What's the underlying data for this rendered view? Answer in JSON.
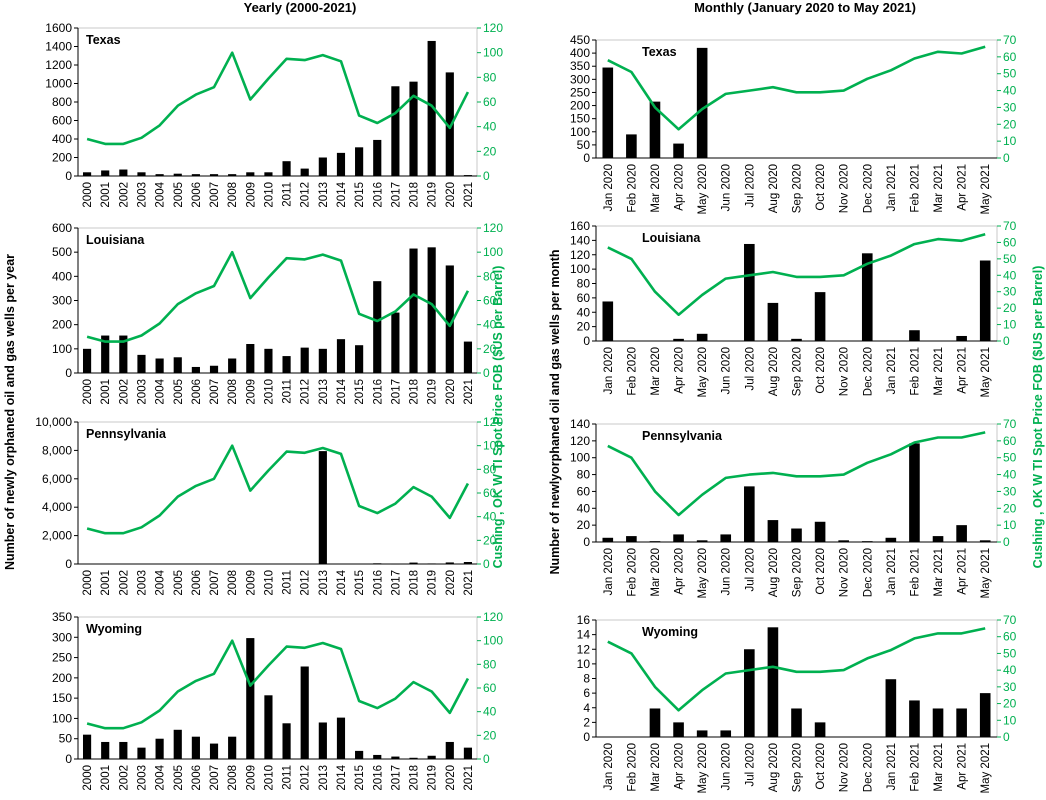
{
  "titles": {
    "yearly": "Yearly (2000-2021)",
    "monthly": "Monthly (January 2020 to May 2021)"
  },
  "ylabels": {
    "yearly": "Number of newly orphaned oil and gas wells per year",
    "monthly": "Number of newlyorphaned oil and gas wells per month",
    "price": "Cushing , OK W TI Spot Price FOB ($US per Barrel)"
  },
  "colors": {
    "bars": "#000000",
    "price_line": "#00b050",
    "axis": "#000000"
  },
  "chart_data": [
    {
      "type": "bar+line",
      "panel": "yearly",
      "label": "Texas",
      "categories": [
        "2000",
        "2001",
        "2002",
        "2003",
        "2004",
        "2005",
        "2006",
        "2007",
        "2008",
        "2009",
        "2010",
        "2011",
        "2012",
        "2013",
        "2014",
        "2015",
        "2016",
        "2017",
        "2018",
        "2019",
        "2020",
        "2021"
      ],
      "wells": [
        40,
        60,
        70,
        40,
        20,
        25,
        20,
        20,
        20,
        40,
        40,
        160,
        80,
        200,
        250,
        310,
        390,
        970,
        1020,
        1460,
        1120,
        10
      ],
      "price": [
        30,
        26,
        26,
        31,
        41,
        57,
        66,
        72,
        100,
        62,
        79,
        95,
        94,
        98,
        93,
        49,
        43,
        51,
        65,
        57,
        39,
        68
      ],
      "ylim": [
        0,
        1600
      ],
      "yticks": [
        0,
        200,
        400,
        600,
        800,
        1000,
        1200,
        1400,
        1600
      ],
      "y2lim": [
        0,
        120
      ],
      "y2ticks": [
        0,
        20,
        40,
        60,
        80,
        100,
        120
      ]
    },
    {
      "type": "bar+line",
      "panel": "yearly",
      "label": "Louisiana",
      "categories": [
        "2000",
        "2001",
        "2002",
        "2003",
        "2004",
        "2005",
        "2006",
        "2007",
        "2008",
        "2009",
        "2010",
        "2011",
        "2012",
        "2013",
        "2014",
        "2015",
        "2016",
        "2017",
        "2018",
        "2019",
        "2020",
        "2021"
      ],
      "wells": [
        100,
        155,
        155,
        75,
        60,
        65,
        25,
        30,
        60,
        120,
        100,
        70,
        105,
        100,
        140,
        115,
        380,
        250,
        515,
        520,
        445,
        130
      ],
      "price": [
        30,
        26,
        26,
        31,
        41,
        57,
        66,
        72,
        100,
        62,
        79,
        95,
        94,
        98,
        93,
        49,
        43,
        51,
        65,
        57,
        39,
        68
      ],
      "ylim": [
        0,
        600
      ],
      "yticks": [
        0,
        100,
        200,
        300,
        400,
        500,
        600
      ],
      "y2lim": [
        0,
        120
      ],
      "y2ticks": [
        0,
        20,
        40,
        60,
        80,
        100,
        120
      ]
    },
    {
      "type": "bar+line",
      "panel": "yearly",
      "label": "Pennsylvania",
      "categories": [
        "2000",
        "2001",
        "2002",
        "2003",
        "2004",
        "2005",
        "2006",
        "2007",
        "2008",
        "2009",
        "2010",
        "2011",
        "2012",
        "2013",
        "2014",
        "2015",
        "2016",
        "2017",
        "2018",
        "2019",
        "2020",
        "2021"
      ],
      "wells": [
        0,
        0,
        0,
        0,
        0,
        0,
        0,
        0,
        0,
        0,
        0,
        0,
        0,
        7950,
        0,
        30,
        50,
        20,
        100,
        40,
        110,
        140
      ],
      "price": [
        30,
        26,
        26,
        31,
        41,
        57,
        66,
        72,
        100,
        62,
        79,
        95,
        94,
        98,
        93,
        49,
        43,
        51,
        65,
        57,
        39,
        68
      ],
      "ylim": [
        0,
        10000
      ],
      "yticks": [
        "0",
        "2,000",
        "4,000",
        "6,000",
        "8,000",
        "10,000"
      ],
      "y2lim": [
        0,
        120
      ],
      "y2ticks": [
        0,
        20,
        40,
        60,
        80,
        100,
        120
      ]
    },
    {
      "type": "bar+line",
      "panel": "yearly",
      "label": "Wyoming",
      "categories": [
        "2000",
        "2001",
        "2002",
        "2003",
        "2004",
        "2005",
        "2006",
        "2007",
        "2008",
        "2009",
        "2010",
        "2011",
        "2012",
        "2013",
        "2014",
        "2015",
        "2016",
        "2017",
        "2018",
        "2019",
        "2020",
        "2021"
      ],
      "wells": [
        60,
        42,
        42,
        28,
        50,
        72,
        55,
        38,
        55,
        298,
        157,
        88,
        228,
        90,
        102,
        20,
        10,
        6,
        3,
        8,
        42,
        28
      ],
      "price": [
        30,
        26,
        26,
        31,
        41,
        57,
        66,
        72,
        100,
        62,
        79,
        95,
        94,
        98,
        93,
        49,
        43,
        51,
        65,
        57,
        39,
        68
      ],
      "ylim": [
        0,
        350
      ],
      "yticks": [
        0,
        50,
        100,
        150,
        200,
        250,
        300,
        350
      ],
      "y2lim": [
        0,
        120
      ],
      "y2ticks": [
        0,
        20,
        40,
        60,
        80,
        100,
        120
      ]
    },
    {
      "type": "bar+line",
      "panel": "monthly",
      "label": "Texas",
      "categories": [
        "Jan 2020",
        "Feb 2020",
        "Mar 2020",
        "Apr 2020",
        "May 2020",
        "Jun 2020",
        "Jul 2020",
        "Aug 2020",
        "Sep 2020",
        "Oct 2020",
        "Nov 2020",
        "Dec 2020",
        "Jan 2021",
        "Feb 2021",
        "Mar 2021",
        "Apr 2021",
        "May 2021"
      ],
      "wells": [
        345,
        90,
        215,
        55,
        420,
        0,
        0,
        0,
        0,
        0,
        0,
        0,
        0,
        0,
        0,
        0,
        0
      ],
      "price": [
        58,
        51,
        30,
        17,
        29,
        38,
        40,
        42,
        39,
        39,
        40,
        47,
        52,
        59,
        63,
        62,
        66
      ],
      "ylim": [
        0,
        450
      ],
      "yticks": [
        0,
        50,
        100,
        150,
        200,
        250,
        300,
        350,
        400,
        450
      ],
      "y2lim": [
        0,
        70
      ],
      "y2ticks": [
        0,
        10,
        20,
        30,
        40,
        50,
        60,
        70
      ]
    },
    {
      "type": "bar+line",
      "panel": "monthly",
      "label": "Louisiana",
      "categories": [
        "Jan 2020",
        "Feb 2020",
        "Mar 2020",
        "Apr 2020",
        "May 2020",
        "Jun 2020",
        "Jul 2020",
        "Aug 2020",
        "Sep 2020",
        "Oct 2020",
        "Nov 2020",
        "Dec 2020",
        "Jan 2021",
        "Feb 2021",
        "Mar 2021",
        "Apr 2021",
        "May 2021"
      ],
      "wells": [
        55,
        0,
        0,
        3,
        10,
        0,
        135,
        53,
        3,
        68,
        0,
        122,
        0,
        15,
        0,
        7,
        112
      ],
      "price": [
        57,
        50,
        30,
        16,
        28,
        38,
        40,
        42,
        39,
        39,
        40,
        47,
        52,
        59,
        62,
        61,
        65
      ],
      "ylim": [
        0,
        160
      ],
      "yticks": [
        0,
        20,
        40,
        60,
        80,
        100,
        120,
        140,
        160
      ],
      "y2lim": [
        0,
        70
      ],
      "y2ticks": [
        0,
        10,
        20,
        30,
        40,
        50,
        60,
        70
      ]
    },
    {
      "type": "bar+line",
      "panel": "monthly",
      "label": "Pennsylvania",
      "categories": [
        "Jan 2020",
        "Feb 2020",
        "Mar 2020",
        "Apr 2020",
        "May 2020",
        "Jun 2020",
        "Jul 2020",
        "Aug 2020",
        "Sep 2020",
        "Oct 2020",
        "Nov 2020",
        "Dec 2020",
        "Jan 2021",
        "Feb 2021",
        "Mar 2021",
        "Apr 2021",
        "May 2021"
      ],
      "wells": [
        5,
        7,
        1,
        9,
        2,
        9,
        66,
        26,
        16,
        24,
        2,
        1,
        5,
        117,
        7,
        20,
        2
      ],
      "price": [
        57,
        50,
        30,
        16,
        28,
        38,
        40,
        41,
        39,
        39,
        40,
        47,
        52,
        59,
        62,
        62,
        65
      ],
      "ylim": [
        0,
        140
      ],
      "yticks": [
        0,
        20,
        40,
        60,
        80,
        100,
        120,
        140
      ],
      "y2lim": [
        0,
        70
      ],
      "y2ticks": [
        0,
        10,
        20,
        30,
        40,
        50,
        60,
        70
      ]
    },
    {
      "type": "bar+line",
      "panel": "monthly",
      "label": "Wyoming",
      "categories": [
        "Jan 2020",
        "Feb 2020",
        "Mar 2020",
        "Apr 2020",
        "May 2020",
        "Jun 2020",
        "Jul 2020",
        "Aug 2020",
        "Sep 2020",
        "Oct 2020",
        "Nov 2020",
        "Dec 2020",
        "Jan 2021",
        "Feb 2021",
        "Mar 2021",
        "Apr 2021",
        "May 2021"
      ],
      "wells": [
        0,
        0,
        3.9,
        2,
        0.9,
        0.9,
        12,
        15,
        3.9,
        2,
        0,
        0,
        7.9,
        5,
        3.9,
        3.9,
        6
      ],
      "price": [
        57,
        50,
        30,
        16,
        28,
        38,
        40,
        42,
        39,
        39,
        40,
        47,
        52,
        59,
        62,
        62,
        65
      ],
      "ylim": [
        0,
        16
      ],
      "yticks": [
        0,
        2,
        4,
        6,
        8,
        10,
        12,
        14,
        16
      ],
      "y2lim": [
        0,
        70
      ],
      "y2ticks": [
        0,
        10,
        20,
        30,
        40,
        50,
        60,
        70
      ]
    }
  ]
}
